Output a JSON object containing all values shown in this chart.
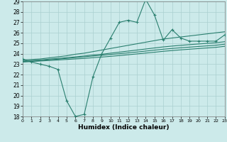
{
  "xlabel": "Humidex (Indice chaleur)",
  "x": [
    0,
    1,
    2,
    3,
    4,
    5,
    6,
    7,
    8,
    9,
    10,
    11,
    12,
    13,
    14,
    15,
    16,
    17,
    18,
    19,
    20,
    21,
    22,
    23
  ],
  "line_volatile": [
    23.5,
    23.2,
    23.0,
    22.8,
    22.5,
    19.5,
    18.0,
    18.2,
    21.8,
    24.0,
    25.5,
    27.0,
    27.2,
    27.0,
    29.2,
    27.7,
    25.3,
    26.3,
    25.5,
    25.2,
    25.2,
    25.2,
    25.2,
    25.8
  ],
  "line_upper": [
    23.4,
    23.45,
    23.5,
    23.6,
    23.7,
    23.8,
    23.95,
    24.05,
    24.2,
    24.35,
    24.5,
    24.65,
    24.8,
    24.95,
    25.1,
    25.25,
    25.4,
    25.5,
    25.6,
    25.7,
    25.8,
    25.9,
    26.0,
    26.1
  ],
  "line_mid_upper": [
    23.3,
    23.35,
    23.4,
    23.48,
    23.55,
    23.62,
    23.7,
    23.78,
    23.87,
    23.95,
    24.05,
    24.15,
    24.25,
    24.35,
    24.45,
    24.55,
    24.65,
    24.73,
    24.8,
    24.87,
    24.93,
    24.99,
    25.05,
    25.15
  ],
  "line_mid_lower": [
    23.25,
    23.3,
    23.35,
    23.42,
    23.48,
    23.55,
    23.62,
    23.7,
    23.78,
    23.85,
    23.93,
    24.0,
    24.08,
    24.16,
    24.25,
    24.34,
    24.43,
    24.5,
    24.57,
    24.63,
    24.69,
    24.75,
    24.81,
    24.91
  ],
  "line_lower": [
    23.2,
    23.25,
    23.3,
    23.35,
    23.4,
    23.45,
    23.5,
    23.55,
    23.62,
    23.68,
    23.75,
    23.82,
    23.9,
    23.98,
    24.06,
    24.14,
    24.23,
    24.3,
    24.37,
    24.43,
    24.49,
    24.55,
    24.61,
    24.71
  ],
  "line_color": "#2a7f6f",
  "bg_color": "#cceaea",
  "grid_color": "#aacfcf",
  "ylim": [
    18,
    29
  ],
  "yticks": [
    18,
    19,
    20,
    21,
    22,
    23,
    24,
    25,
    26,
    27,
    28,
    29
  ],
  "xticks": [
    0,
    1,
    2,
    3,
    4,
    5,
    6,
    7,
    8,
    9,
    10,
    11,
    12,
    13,
    14,
    15,
    16,
    17,
    18,
    19,
    20,
    21,
    22,
    23
  ]
}
